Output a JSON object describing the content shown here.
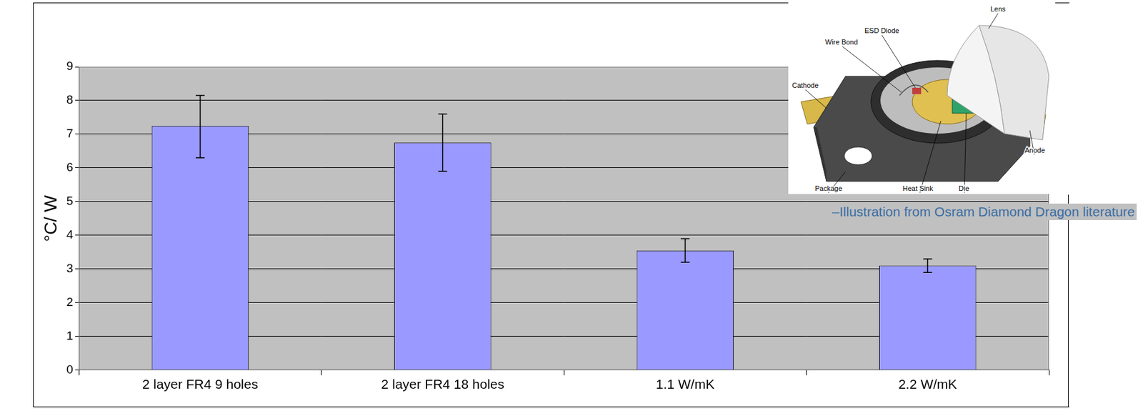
{
  "chart_data": {
    "type": "bar",
    "y_label": "°C/ W",
    "categories": [
      "2 layer FR4 9 holes",
      "2 layer FR4 18 holes",
      "1.1 W/mK",
      "2.2 W/mK"
    ],
    "values": [
      7.25,
      6.75,
      3.55,
      3.1
    ],
    "errors_minus": [
      0.95,
      0.85,
      0.35,
      0.2
    ],
    "errors_plus": [
      0.9,
      0.85,
      0.35,
      0.2
    ],
    "color": "#9999ff",
    "ylim": [
      0,
      9
    ],
    "yticks": [
      0,
      1,
      2,
      3,
      4,
      5,
      6,
      7,
      8,
      9
    ],
    "grid": true
  },
  "illustration": {
    "caption": "–Illustration from Osram Diamond Dragon literature",
    "labels": [
      "Lens",
      "ESD Diode",
      "Wire Bond",
      "Cathode",
      "Anode",
      "Package",
      "Heat Sink",
      "Die"
    ]
  }
}
